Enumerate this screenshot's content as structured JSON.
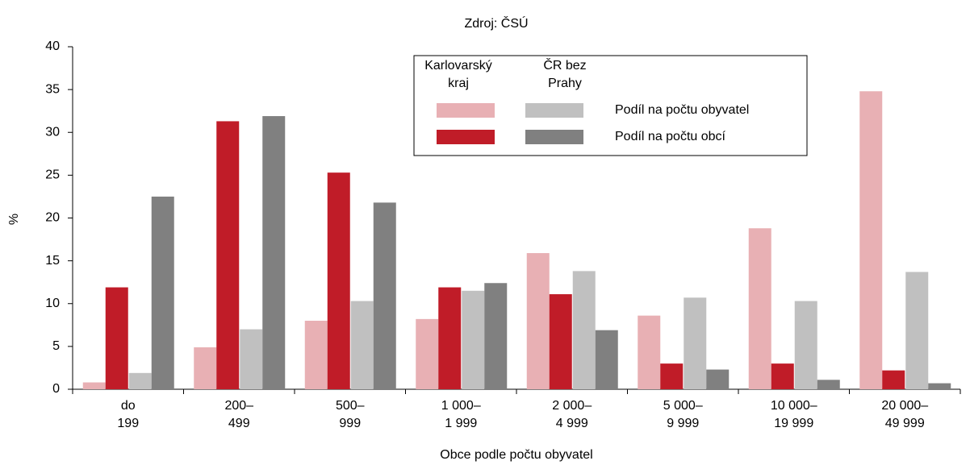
{
  "chart_data": {
    "type": "bar",
    "title": "Zdroj: ČSÚ",
    "x_label": "Obce podle počtu obyvatel",
    "y_label": "%",
    "categories": [
      "do\n199",
      "200–\n499",
      "500–\n999",
      "1 000–\n1 999",
      "2 000–\n4 999",
      "5 000–\n9 999",
      "10 000–\n19 999",
      "20 000–\n49 999"
    ],
    "legend": {
      "columns": [
        "Karlovarský\nkraj",
        "ČR bez\nPrahy"
      ],
      "rows": [
        "Podíl na počtu obyvatel",
        "Podíl na počtu obcí"
      ]
    },
    "series": [
      {
        "color": "#e8b0b4",
        "values": [
          0.8,
          4.9,
          8.0,
          8.2,
          15.9,
          8.6,
          18.8,
          34.8
        ]
      },
      {
        "color": "#c01c28",
        "values": [
          11.9,
          31.3,
          25.3,
          11.9,
          11.1,
          3.0,
          3.0,
          2.2
        ]
      },
      {
        "color": "#c0c0c0",
        "values": [
          1.9,
          7.0,
          10.3,
          11.5,
          13.8,
          10.7,
          10.3,
          13.7
        ]
      },
      {
        "color": "#808080",
        "values": [
          22.5,
          31.9,
          21.8,
          12.4,
          6.9,
          2.3,
          1.1,
          0.7
        ]
      }
    ],
    "ylim": [
      0,
      40
    ],
    "yticks": [
      0,
      5,
      10,
      15,
      20,
      25,
      30,
      35,
      40
    ],
    "grid": false
  }
}
